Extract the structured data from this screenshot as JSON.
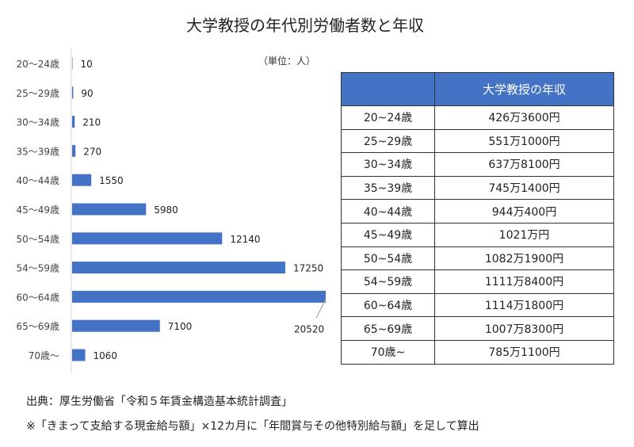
{
  "chart_data": {
    "type": "bar",
    "orientation": "horizontal",
    "title": "大学教授の年代別労働者数と年収",
    "unit_label": "（単位：人）",
    "categories": [
      "20〜24歳",
      "25〜29歳",
      "30〜34歳",
      "35〜39歳",
      "40〜44歳",
      "45〜49歳",
      "50〜54歳",
      "54〜59歳",
      "60〜64歳",
      "65〜69歳",
      "70歳〜"
    ],
    "values": [
      10,
      90,
      210,
      270,
      1550,
      5980,
      12140,
      17250,
      20520,
      7100,
      1060
    ],
    "bar_color": "#4472c4",
    "xlim": [
      0,
      20520
    ],
    "grid": false,
    "data_labels": true
  },
  "table": {
    "header": [
      "",
      "大学教授の年収"
    ],
    "rows": [
      [
        "20~24歳",
        "426万3600円"
      ],
      [
        "25~29歳",
        "551万1000円"
      ],
      [
        "30~34歳",
        "637万8100円"
      ],
      [
        "35~39歳",
        "745万1400円"
      ],
      [
        "40~44歳",
        "944万400円"
      ],
      [
        "45~49歳",
        "1021万円"
      ],
      [
        "50~54歳",
        "1082万1900円"
      ],
      [
        "54~59歳",
        "1111万8400円"
      ],
      [
        "60~64歳",
        "1114万1800円"
      ],
      [
        "65~69歳",
        "1007万8300円"
      ],
      [
        "70歳~",
        "785万1100円"
      ]
    ],
    "header_color": "#4472c4"
  },
  "notes": {
    "source": "出典：厚生労働省「令和５年賃金構造基本統計調査」",
    "method": "※「きまって支給する現金給与額」×12カ月に「年間賞与その他特別給与額」を足して算出"
  }
}
